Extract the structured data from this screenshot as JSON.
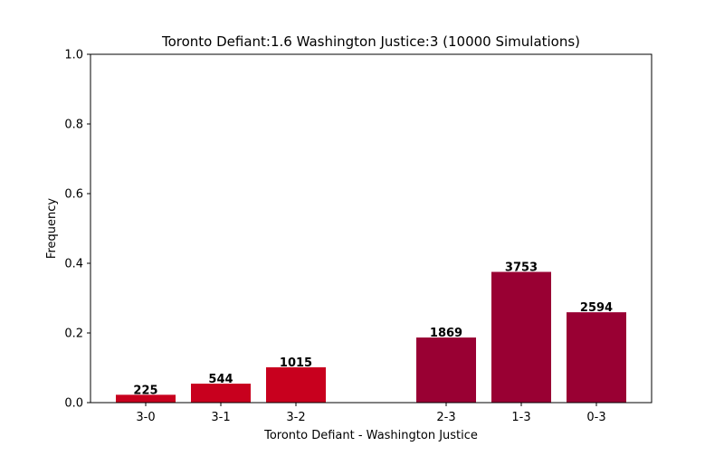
{
  "chart_data": {
    "type": "bar",
    "title": "Toronto Defiant:1.6  Washington Justice:3 (10000 Simulations)",
    "xlabel": "Toronto Defiant - Washington Justice",
    "ylabel": "Frequency",
    "ylim": [
      0,
      1.0
    ],
    "yticks": [
      "0.0",
      "0.2",
      "0.4",
      "0.6",
      "0.8",
      "1.0"
    ],
    "grid": false,
    "categories": [
      "3-0",
      "3-1",
      "3-2",
      "2-3",
      "1-3",
      "0-3"
    ],
    "values": [
      0.0225,
      0.0544,
      0.1015,
      0.1869,
      0.3753,
      0.2594
    ],
    "labels": [
      "225",
      "544",
      "1015",
      "1869",
      "3753",
      "2594"
    ],
    "colors": [
      "#c8001e",
      "#c8001e",
      "#c8001e",
      "#990033",
      "#990033",
      "#990033"
    ]
  }
}
